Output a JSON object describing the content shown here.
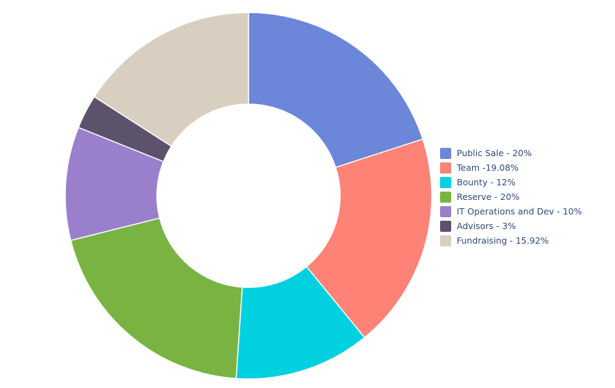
{
  "chart_data": {
    "type": "pie",
    "donut": true,
    "title": "",
    "legend_position": "right",
    "slices": [
      {
        "label": "Public Sale - 20%",
        "value": 20,
        "color": "#6c87d9"
      },
      {
        "label": "Team -19.08%",
        "value": 19.08,
        "color": "#ff8276"
      },
      {
        "label": "Bounty - 12%",
        "value": 12,
        "color": "#00d0df"
      },
      {
        "label": "Reserve - 20%",
        "value": 20,
        "color": "#79b442"
      },
      {
        "label": "IT Operations and Dev - 10%",
        "value": 10,
        "color": "#9a7fcc"
      },
      {
        "label": "Advisors - 3%",
        "value": 3,
        "color": "#5c526c"
      },
      {
        "label": "Fundraising - 15.92%",
        "value": 15.92,
        "color": "#d8cfc0"
      }
    ]
  }
}
